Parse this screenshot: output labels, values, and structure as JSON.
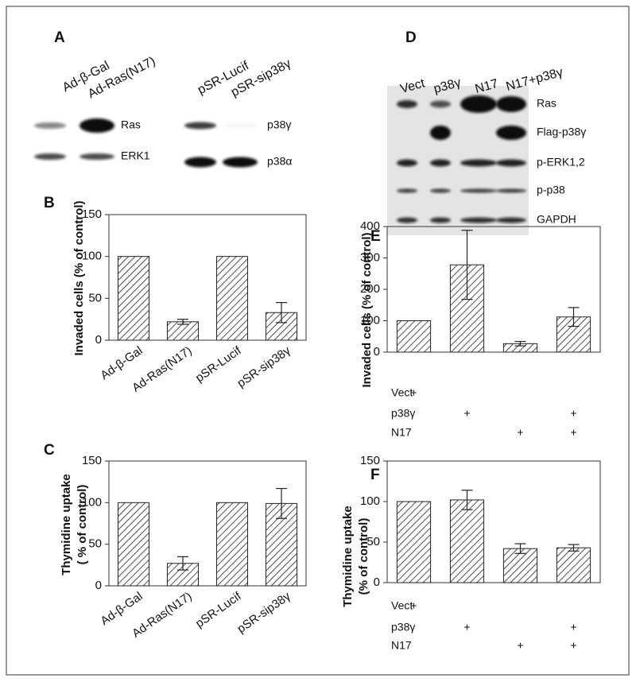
{
  "blot_panels": [
    {
      "letter": "A",
      "blots": [
        {
          "lanes": [
            "Ad-β-Gal",
            "Ad-Ras(N17)"
          ],
          "rows": [
            "Ras",
            "ERK1"
          ]
        },
        {
          "lanes": [
            "pSR-Lucif",
            "pSR-sip38γ"
          ],
          "rows": [
            "p38γ",
            "p38α"
          ]
        }
      ]
    },
    {
      "letter": "D",
      "blots": [
        {
          "lanes": [
            "Vect",
            "p38γ",
            "N17",
            "N17+p38γ"
          ],
          "rows": [
            "Ras",
            "Flag-p38γ",
            "p-ERK1,2",
            "p-p38",
            "GAPDH"
          ]
        }
      ]
    }
  ],
  "chart_data": [
    {
      "type": "bar",
      "panel": "B",
      "ylabel": [
        "Invaded cells (% of control)"
      ],
      "categories": [
        "Ad-β-Gal",
        "Ad-Ras(N17)",
        "pSR-Lucif",
        "pSR-sip38γ"
      ],
      "values": [
        100,
        22,
        100,
        33
      ],
      "errors": [
        null,
        3,
        null,
        12
      ],
      "ylim": [
        0,
        150
      ],
      "yticks": [
        0,
        50,
        100,
        150
      ]
    },
    {
      "type": "bar",
      "panel": "C",
      "ylabel": [
        "Thymidine uptake",
        "( % of control)"
      ],
      "categories": [
        "Ad-β-Gal",
        "Ad-Ras(N17)",
        "pSR-Lucif",
        "pSR-sip38γ"
      ],
      "values": [
        100,
        27,
        100,
        99
      ],
      "errors": [
        null,
        8,
        null,
        18
      ],
      "ylim": [
        0,
        150
      ],
      "yticks": [
        0,
        50,
        100,
        150
      ]
    },
    {
      "type": "bar",
      "panel": "E",
      "ylabel": [
        "Invaded cells (% of control)"
      ],
      "values": [
        100,
        278,
        27,
        112
      ],
      "errors": [
        null,
        110,
        7,
        30
      ],
      "ylim": [
        0,
        400
      ],
      "yticks": [
        0,
        100,
        200,
        300,
        400
      ],
      "conditions": [
        {
          "name": "Vect",
          "marks": [
            "+",
            null,
            null,
            null
          ]
        },
        {
          "name": "p38γ",
          "marks": [
            null,
            "+",
            null,
            "+"
          ]
        },
        {
          "name": "N17",
          "marks": [
            null,
            null,
            "+",
            "+"
          ]
        }
      ]
    },
    {
      "type": "bar",
      "panel": "F",
      "ylabel": [
        "Thymidine uptake",
        "(% of control)"
      ],
      "values": [
        100,
        102,
        42,
        43
      ],
      "errors": [
        null,
        12,
        6,
        4
      ],
      "ylim": [
        0,
        150
      ],
      "yticks": [
        0,
        50,
        100,
        150
      ],
      "conditions": [
        {
          "name": "Vect",
          "marks": [
            "+",
            null,
            null,
            null
          ]
        },
        {
          "name": "p38γ",
          "marks": [
            null,
            "+",
            null,
            "+"
          ]
        },
        {
          "name": "N17",
          "marks": [
            null,
            null,
            "+",
            "+"
          ]
        }
      ]
    }
  ]
}
